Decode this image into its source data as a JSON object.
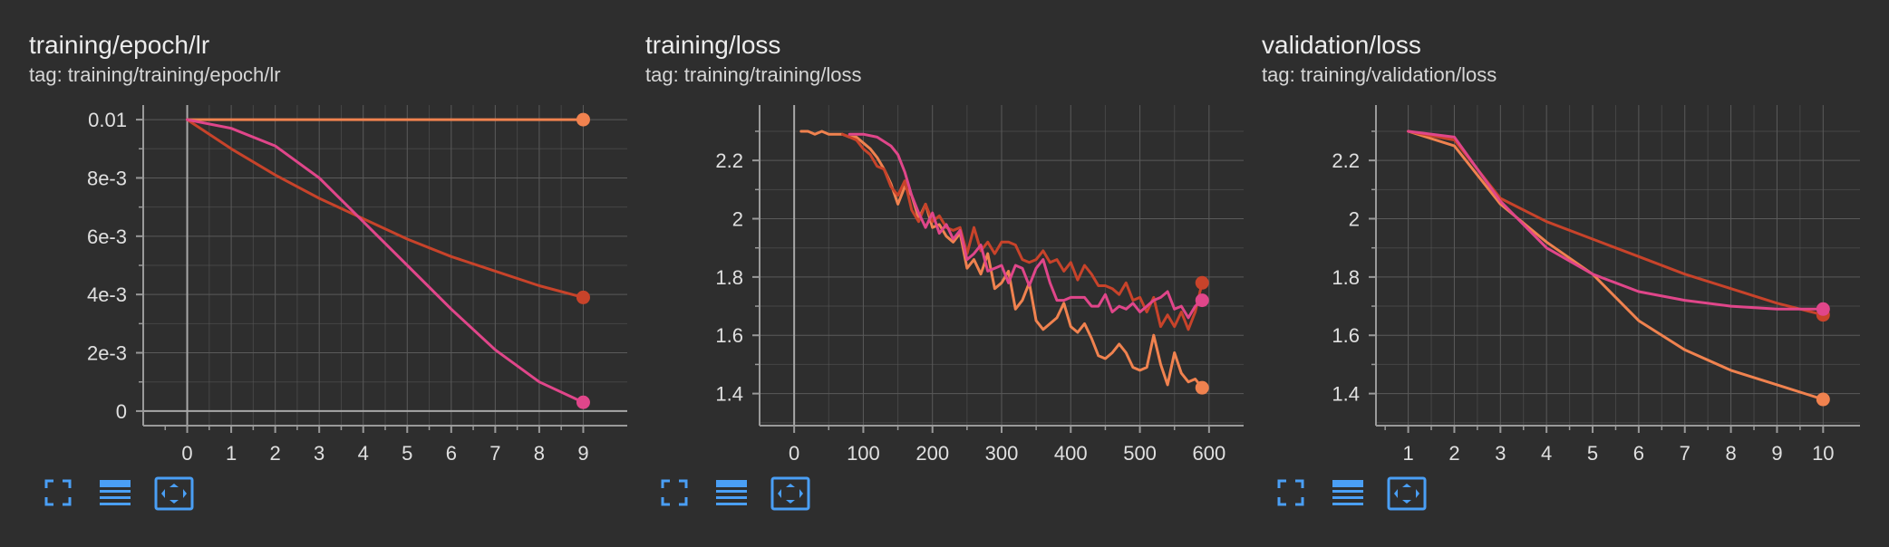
{
  "cards": [
    {
      "title": "training/epoch/lr",
      "subtitle": "tag: training/training/epoch/lr",
      "toolbar": {
        "fullscreen_icon": "fullscreen-icon",
        "data_table_icon": "data-table-icon",
        "fit_domain_icon": "fit-domain-icon"
      }
    },
    {
      "title": "training/loss",
      "subtitle": "tag: training/training/loss",
      "toolbar": {
        "fullscreen_icon": "fullscreen-icon",
        "data_table_icon": "data-table-icon",
        "fit_domain_icon": "fit-domain-icon"
      }
    },
    {
      "title": "validation/loss",
      "subtitle": "tag: training/validation/loss",
      "toolbar": {
        "fullscreen_icon": "fullscreen-icon",
        "data_table_icon": "data-table-icon",
        "fit_domain_icon": "fit-domain-icon"
      }
    }
  ],
  "colors": {
    "background": "#2e2e2e",
    "grid": "#5a5a5a",
    "axis": "#9a9a9a",
    "zero_line": "#a8a8a8",
    "tick_text": "#e0e0e0",
    "icon": "#4a9ff5",
    "run1": "#f0824f",
    "run2": "#c8432a",
    "run3": "#e0468a"
  },
  "chart_data": [
    {
      "type": "line",
      "xlim": [
        -1,
        10
      ],
      "ylim": [
        -0.0005,
        0.0105
      ],
      "x_ticks": [
        0,
        1,
        2,
        3,
        4,
        5,
        6,
        7,
        8,
        9
      ],
      "x_tick_labels": [
        "0",
        "1",
        "2",
        "3",
        "4",
        "5",
        "6",
        "7",
        "8",
        "9"
      ],
      "y_ticks": [
        0,
        0.002,
        0.004,
        0.006,
        0.008,
        0.01
      ],
      "y_tick_labels": [
        "0",
        "2e-3",
        "4e-3",
        "6e-3",
        "8e-3",
        "0.01"
      ],
      "zero_x": 0,
      "zero_y": 0,
      "grid": true,
      "series": [
        {
          "color": "#f0824f",
          "x": [
            0,
            1,
            2,
            3,
            4,
            5,
            6,
            7,
            8,
            9
          ],
          "y": [
            0.01,
            0.01,
            0.01,
            0.01,
            0.01,
            0.01,
            0.01,
            0.01,
            0.01,
            0.01
          ]
        },
        {
          "color": "#c8432a",
          "x": [
            0,
            1,
            2,
            3,
            4,
            5,
            6,
            7,
            8,
            9
          ],
          "y": [
            0.01,
            0.009,
            0.0081,
            0.0073,
            0.0066,
            0.0059,
            0.0053,
            0.0048,
            0.0043,
            0.0039
          ]
        },
        {
          "color": "#e0468a",
          "x": [
            0,
            1,
            2,
            3,
            4,
            5,
            6,
            7,
            8,
            9
          ],
          "y": [
            0.01,
            0.0097,
            0.0091,
            0.008,
            0.0065,
            0.005,
            0.0035,
            0.0021,
            0.001,
            0.0003
          ]
        }
      ]
    },
    {
      "type": "line",
      "xlim": [
        -50,
        650
      ],
      "ylim": [
        1.29,
        2.39
      ],
      "x_ticks": [
        0,
        100,
        200,
        300,
        400,
        500,
        600
      ],
      "x_tick_labels": [
        "0",
        "100",
        "200",
        "300",
        "400",
        "500",
        "600"
      ],
      "y_ticks": [
        1.4,
        1.6,
        1.8,
        2.0,
        2.2
      ],
      "y_tick_labels": [
        "1.4",
        "1.6",
        "1.8",
        "2",
        "2.2"
      ],
      "zero_x": 0,
      "grid": true,
      "series": [
        {
          "color": "#f0824f",
          "x": [
            10,
            20,
            30,
            40,
            50,
            60,
            70,
            80,
            90,
            100,
            110,
            120,
            130,
            140,
            150,
            160,
            170,
            180,
            190,
            200,
            210,
            220,
            230,
            240,
            250,
            260,
            270,
            280,
            290,
            300,
            310,
            320,
            330,
            340,
            350,
            360,
            370,
            380,
            390,
            400,
            410,
            420,
            430,
            440,
            450,
            460,
            470,
            480,
            490,
            500,
            510,
            520,
            530,
            540,
            550,
            560,
            570,
            580,
            590
          ],
          "y": [
            2.3,
            2.3,
            2.29,
            2.3,
            2.29,
            2.29,
            2.29,
            2.28,
            2.28,
            2.26,
            2.24,
            2.21,
            2.17,
            2.12,
            2.05,
            2.11,
            2.08,
            2.0,
            2.05,
            1.97,
            1.98,
            1.94,
            1.92,
            1.95,
            1.83,
            1.86,
            1.81,
            1.88,
            1.76,
            1.78,
            1.82,
            1.69,
            1.72,
            1.78,
            1.65,
            1.62,
            1.64,
            1.66,
            1.71,
            1.63,
            1.61,
            1.64,
            1.59,
            1.53,
            1.52,
            1.54,
            1.57,
            1.54,
            1.49,
            1.48,
            1.49,
            1.6,
            1.5,
            1.43,
            1.54,
            1.47,
            1.44,
            1.45,
            1.42
          ]
        },
        {
          "color": "#c8432a",
          "x": [
            70,
            80,
            90,
            100,
            110,
            120,
            130,
            140,
            150,
            160,
            170,
            180,
            190,
            200,
            210,
            220,
            230,
            240,
            250,
            260,
            270,
            280,
            290,
            300,
            310,
            320,
            330,
            340,
            350,
            360,
            370,
            380,
            390,
            400,
            410,
            420,
            430,
            440,
            450,
            460,
            470,
            480,
            490,
            500,
            510,
            520,
            530,
            540,
            550,
            560,
            570,
            580,
            590
          ],
          "y": [
            2.29,
            2.28,
            2.27,
            2.24,
            2.22,
            2.18,
            2.17,
            2.11,
            2.08,
            2.13,
            2.03,
            1.99,
            2.05,
            1.99,
            2.01,
            1.97,
            1.96,
            1.97,
            1.88,
            1.97,
            1.89,
            1.92,
            1.88,
            1.92,
            1.92,
            1.91,
            1.86,
            1.85,
            1.86,
            1.89,
            1.85,
            1.86,
            1.82,
            1.85,
            1.79,
            1.84,
            1.81,
            1.77,
            1.77,
            1.76,
            1.74,
            1.78,
            1.72,
            1.73,
            1.68,
            1.73,
            1.63,
            1.67,
            1.63,
            1.68,
            1.62,
            1.68,
            1.78
          ]
        },
        {
          "color": "#e0468a",
          "x": [
            80,
            100,
            120,
            140,
            150,
            160,
            170,
            180,
            190,
            200,
            210,
            220,
            230,
            240,
            250,
            260,
            270,
            280,
            290,
            300,
            310,
            320,
            330,
            340,
            350,
            360,
            370,
            380,
            390,
            400,
            410,
            420,
            430,
            440,
            450,
            460,
            470,
            480,
            490,
            500,
            510,
            520,
            530,
            540,
            550,
            560,
            570,
            580,
            590
          ],
          "y": [
            2.29,
            2.29,
            2.28,
            2.25,
            2.22,
            2.16,
            2.08,
            2.02,
            1.97,
            2.02,
            1.95,
            1.98,
            1.93,
            1.96,
            1.86,
            1.88,
            1.91,
            1.82,
            1.83,
            1.84,
            1.78,
            1.84,
            1.83,
            1.77,
            1.83,
            1.86,
            1.78,
            1.72,
            1.72,
            1.73,
            1.73,
            1.73,
            1.7,
            1.7,
            1.74,
            1.68,
            1.7,
            1.69,
            1.71,
            1.68,
            1.7,
            1.72,
            1.73,
            1.75,
            1.69,
            1.7,
            1.66,
            1.7,
            1.72
          ]
        }
      ]
    },
    {
      "type": "line",
      "xlim": [
        0.3,
        10.8
      ],
      "ylim": [
        1.29,
        2.39
      ],
      "x_ticks": [
        1,
        2,
        3,
        4,
        5,
        6,
        7,
        8,
        9,
        10
      ],
      "x_tick_labels": [
        "1",
        "2",
        "3",
        "4",
        "5",
        "6",
        "7",
        "8",
        "9",
        "10"
      ],
      "y_ticks": [
        1.4,
        1.6,
        1.8,
        2.0,
        2.2
      ],
      "y_tick_labels": [
        "1.4",
        "1.6",
        "1.8",
        "2",
        "2.2"
      ],
      "grid": true,
      "series": [
        {
          "color": "#f0824f",
          "x": [
            1,
            2,
            3,
            4,
            5,
            6,
            7,
            8,
            9,
            10
          ],
          "y": [
            2.3,
            2.25,
            2.05,
            1.92,
            1.81,
            1.65,
            1.55,
            1.48,
            1.43,
            1.38
          ]
        },
        {
          "color": "#c8432a",
          "x": [
            1,
            2,
            3,
            4,
            5,
            6,
            7,
            8,
            9,
            10
          ],
          "y": [
            2.3,
            2.27,
            2.07,
            1.99,
            1.93,
            1.87,
            1.81,
            1.76,
            1.71,
            1.67
          ]
        },
        {
          "color": "#e0468a",
          "x": [
            1,
            2,
            3,
            4,
            5,
            6,
            7,
            8,
            9,
            10
          ],
          "y": [
            2.3,
            2.28,
            2.06,
            1.9,
            1.81,
            1.75,
            1.72,
            1.7,
            1.69,
            1.69
          ]
        }
      ]
    }
  ]
}
